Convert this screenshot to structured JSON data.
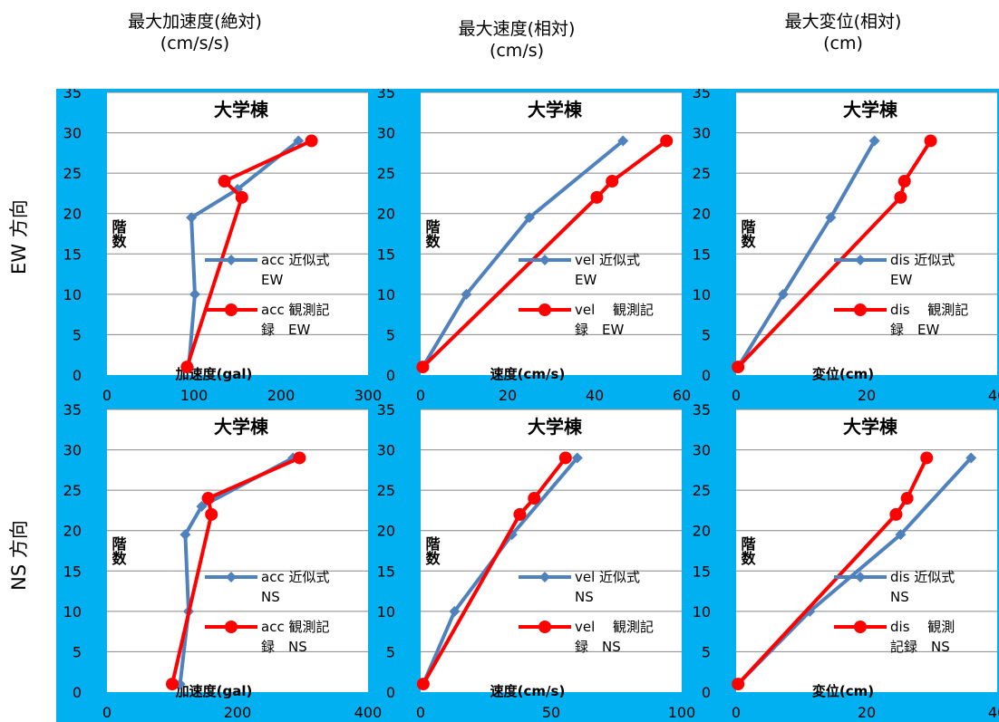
{
  "column_headers": [
    {
      "line1": "最大加速度(絶対)",
      "line2": "(cm/s/s)"
    },
    {
      "line1": "最大速度(相対)",
      "line2": "(cm/s)"
    },
    {
      "line1": "最大変位(相対)",
      "line2": "(cm)"
    }
  ],
  "row_labels": [
    "EW 方向",
    "NS 方向"
  ],
  "colors": {
    "panel_background": "#00b0f0",
    "plot_background": "#ffffff",
    "approx_series": "#4f81bd",
    "observed_series": "#ff0000",
    "gridline": "#888888"
  },
  "chart_data": [
    {
      "type": "line",
      "title": "大学棟",
      "xlabel": "加速度(gal)",
      "ylabel": "階数",
      "xlim": [
        0,
        300
      ],
      "xticks": [
        0,
        100,
        200,
        300
      ],
      "ylim": [
        0,
        35
      ],
      "yticks": [
        0,
        5,
        10,
        15,
        20,
        25,
        30,
        35
      ],
      "grid": "horizontal",
      "legend_position": "right",
      "series": [
        {
          "name": "acc 近似式 EW",
          "legend_lines": [
            "acc 近似式",
            "EW"
          ],
          "color": "#4f81bd",
          "marker": "diamond",
          "points": [
            [
              94,
              1
            ],
            [
              101,
              10
            ],
            [
              97,
              19.5
            ],
            [
              150,
              23
            ],
            [
              220,
              29
            ]
          ]
        },
        {
          "name": "acc 観測記録 EW",
          "legend_lines": [
            "acc 観測記",
            "録　EW"
          ],
          "color": "#ff0000",
          "marker": "circle",
          "points": [
            [
              92,
              1
            ],
            [
              155,
              22
            ],
            [
              135,
              24
            ],
            [
              235,
              29
            ]
          ]
        }
      ]
    },
    {
      "type": "line",
      "title": "大学棟",
      "xlabel": "速度(cm/s)",
      "ylabel": "階数",
      "xlim": [
        0,
        60
      ],
      "xticks": [
        0,
        20,
        40,
        60
      ],
      "ylim": [
        0,
        35
      ],
      "yticks": [
        0,
        5,
        10,
        15,
        20,
        25,
        30,
        35
      ],
      "grid": "horizontal",
      "legend_position": "right",
      "series": [
        {
          "name": "vel 近似式 EW",
          "legend_lines": [
            "vel 近似式",
            "EW"
          ],
          "color": "#4f81bd",
          "marker": "diamond",
          "points": [
            [
              0.5,
              1
            ],
            [
              10.5,
              10
            ],
            [
              25,
              19.5
            ],
            [
              46.5,
              29
            ]
          ]
        },
        {
          "name": "vel 観測記録 EW",
          "legend_lines": [
            "vel　 観測記",
            "録　EW"
          ],
          "color": "#ff0000",
          "marker": "circle",
          "points": [
            [
              0.5,
              1
            ],
            [
              40.5,
              22
            ],
            [
              44,
              24
            ],
            [
              56.5,
              29
            ]
          ]
        }
      ]
    },
    {
      "type": "line",
      "title": "大学棟",
      "xlabel": "変位(cm)",
      "ylabel": "階数",
      "xlim": [
        0,
        40
      ],
      "xticks": [
        0,
        20,
        40
      ],
      "ylim": [
        0,
        35
      ],
      "yticks": [
        0,
        5,
        10,
        15,
        20,
        25,
        30,
        35
      ],
      "grid": "horizontal",
      "legend_position": "right",
      "series": [
        {
          "name": "dis 近似式 EW",
          "legend_lines": [
            "dis 近似式",
            "EW"
          ],
          "color": "#4f81bd",
          "marker": "diamond",
          "points": [
            [
              0.3,
              1
            ],
            [
              7.2,
              10
            ],
            [
              14.5,
              19.5
            ],
            [
              21.2,
              29
            ]
          ]
        },
        {
          "name": "dis 観測記録 EW",
          "legend_lines": [
            "dis　 観測記",
            "録　EW"
          ],
          "color": "#ff0000",
          "marker": "circle",
          "points": [
            [
              0.3,
              1
            ],
            [
              25.2,
              22
            ],
            [
              25.8,
              24
            ],
            [
              29.8,
              29
            ]
          ]
        }
      ]
    },
    {
      "type": "line",
      "title": "大学棟",
      "xlabel": "加速度(gal)",
      "ylabel": "階数",
      "xlim": [
        0,
        400
      ],
      "xticks": [
        0,
        200,
        400
      ],
      "ylim": [
        0,
        35
      ],
      "yticks": [
        0,
        5,
        10,
        15,
        20,
        25,
        30,
        35
      ],
      "grid": "horizontal",
      "legend_position": "right",
      "series": [
        {
          "name": "acc 近似式 NS",
          "legend_lines": [
            "acc 近似式",
            "NS"
          ],
          "color": "#4f81bd",
          "marker": "diamond",
          "points": [
            [
              112,
              1
            ],
            [
              125,
              10
            ],
            [
              120,
              19.5
            ],
            [
              145,
              23
            ],
            [
              285,
              29
            ]
          ]
        },
        {
          "name": "acc 観測記録 NS",
          "legend_lines": [
            "acc 観測記",
            "録　NS"
          ],
          "color": "#ff0000",
          "marker": "circle",
          "points": [
            [
              100,
              1
            ],
            [
              160,
              22
            ],
            [
              155,
              24
            ],
            [
              295,
              29
            ]
          ]
        }
      ]
    },
    {
      "type": "line",
      "title": "大学棟",
      "xlabel": "速度(cm/s)",
      "ylabel": "階数",
      "xlim": [
        0,
        100
      ],
      "xticks": [
        0,
        50,
        100
      ],
      "ylim": [
        0,
        35
      ],
      "yticks": [
        0,
        5,
        10,
        15,
        20,
        25,
        30,
        35
      ],
      "grid": "horizontal",
      "legend_position": "right",
      "series": [
        {
          "name": "vel 近似式 NS",
          "legend_lines": [
            "vel 近似式",
            "NS"
          ],
          "color": "#4f81bd",
          "marker": "diamond",
          "points": [
            [
              1,
              1
            ],
            [
              13,
              10
            ],
            [
              35,
              19.5
            ],
            [
              60,
              29
            ]
          ]
        },
        {
          "name": "vel 観測記録 NS",
          "legend_lines": [
            "vel　 観測記",
            "録　NS"
          ],
          "color": "#ff0000",
          "marker": "circle",
          "points": [
            [
              1,
              1
            ],
            [
              38,
              22
            ],
            [
              43.5,
              24
            ],
            [
              55.5,
              29
            ]
          ]
        }
      ]
    },
    {
      "type": "line",
      "title": "大学棟",
      "xlabel": "変位(cm)",
      "ylabel": "階数",
      "xlim": [
        0,
        40
      ],
      "xticks": [
        0,
        20,
        40
      ],
      "ylim": [
        0,
        35
      ],
      "yticks": [
        0,
        5,
        10,
        15,
        20,
        25,
        30,
        35
      ],
      "grid": "horizontal",
      "legend_position": "right",
      "series": [
        {
          "name": "dis 近似式 NS",
          "legend_lines": [
            "dis 近似式",
            "NS"
          ],
          "color": "#4f81bd",
          "marker": "diamond",
          "points": [
            [
              0.3,
              1
            ],
            [
              11.3,
              10
            ],
            [
              25.2,
              19.5
            ],
            [
              36,
              29
            ]
          ]
        },
        {
          "name": "dis 観測記録 NS",
          "legend_lines": [
            "dis　 観測",
            "記録　NS"
          ],
          "color": "#ff0000",
          "marker": "circle",
          "points": [
            [
              0.3,
              1
            ],
            [
              24.5,
              22
            ],
            [
              26.2,
              24
            ],
            [
              29.2,
              29
            ]
          ]
        }
      ]
    }
  ]
}
